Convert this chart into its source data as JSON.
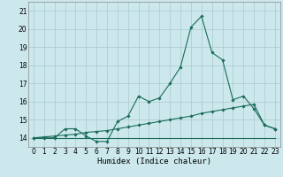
{
  "xlabel": "Humidex (Indice chaleur)",
  "bg_color": "#cce8ec",
  "grid_color": "#b0ced2",
  "line_color": "#1a6b5a",
  "x_ticks": [
    0,
    1,
    2,
    3,
    4,
    5,
    6,
    7,
    8,
    9,
    10,
    11,
    12,
    13,
    14,
    15,
    16,
    17,
    18,
    19,
    20,
    21,
    22,
    23
  ],
  "y_ticks": [
    14,
    15,
    16,
    17,
    18,
    19,
    20,
    21
  ],
  "xlim": [
    -0.5,
    23.5
  ],
  "ylim": [
    13.5,
    21.5
  ],
  "line1_x": [
    0,
    1,
    2,
    3,
    4,
    5,
    6,
    7,
    8,
    9,
    10,
    11,
    12,
    13,
    14,
    15,
    16,
    17,
    18,
    19,
    20,
    21,
    22,
    23
  ],
  "line1_y": [
    14.0,
    14.0,
    14.0,
    14.5,
    14.5,
    14.1,
    13.8,
    13.8,
    14.9,
    15.2,
    16.3,
    16.0,
    16.2,
    17.0,
    17.9,
    20.1,
    20.7,
    18.7,
    18.3,
    16.1,
    16.3,
    15.6,
    14.7,
    14.5
  ],
  "line2_x": [
    0,
    1,
    2,
    3,
    4,
    5,
    6,
    7,
    8,
    9,
    10,
    11,
    12,
    13,
    14,
    15,
    16,
    17,
    18,
    19,
    20,
    21,
    22,
    23
  ],
  "line2_y": [
    14.0,
    14.05,
    14.1,
    14.15,
    14.2,
    14.3,
    14.35,
    14.4,
    14.5,
    14.6,
    14.7,
    14.8,
    14.9,
    15.0,
    15.1,
    15.2,
    15.35,
    15.45,
    15.55,
    15.65,
    15.75,
    15.85,
    14.7,
    14.5
  ],
  "line3_x": [
    0,
    1,
    2,
    3,
    4,
    5,
    6,
    7,
    8,
    9,
    10,
    11,
    12,
    13,
    14,
    15,
    16,
    17,
    18,
    19,
    20,
    21,
    22,
    23
  ],
  "line3_y": [
    14.0,
    14.0,
    14.0,
    14.0,
    14.0,
    14.0,
    14.0,
    14.0,
    14.0,
    14.0,
    14.0,
    14.0,
    14.0,
    14.0,
    14.0,
    14.0,
    14.0,
    14.0,
    14.0,
    14.0,
    14.0,
    14.0,
    14.0,
    14.0
  ]
}
